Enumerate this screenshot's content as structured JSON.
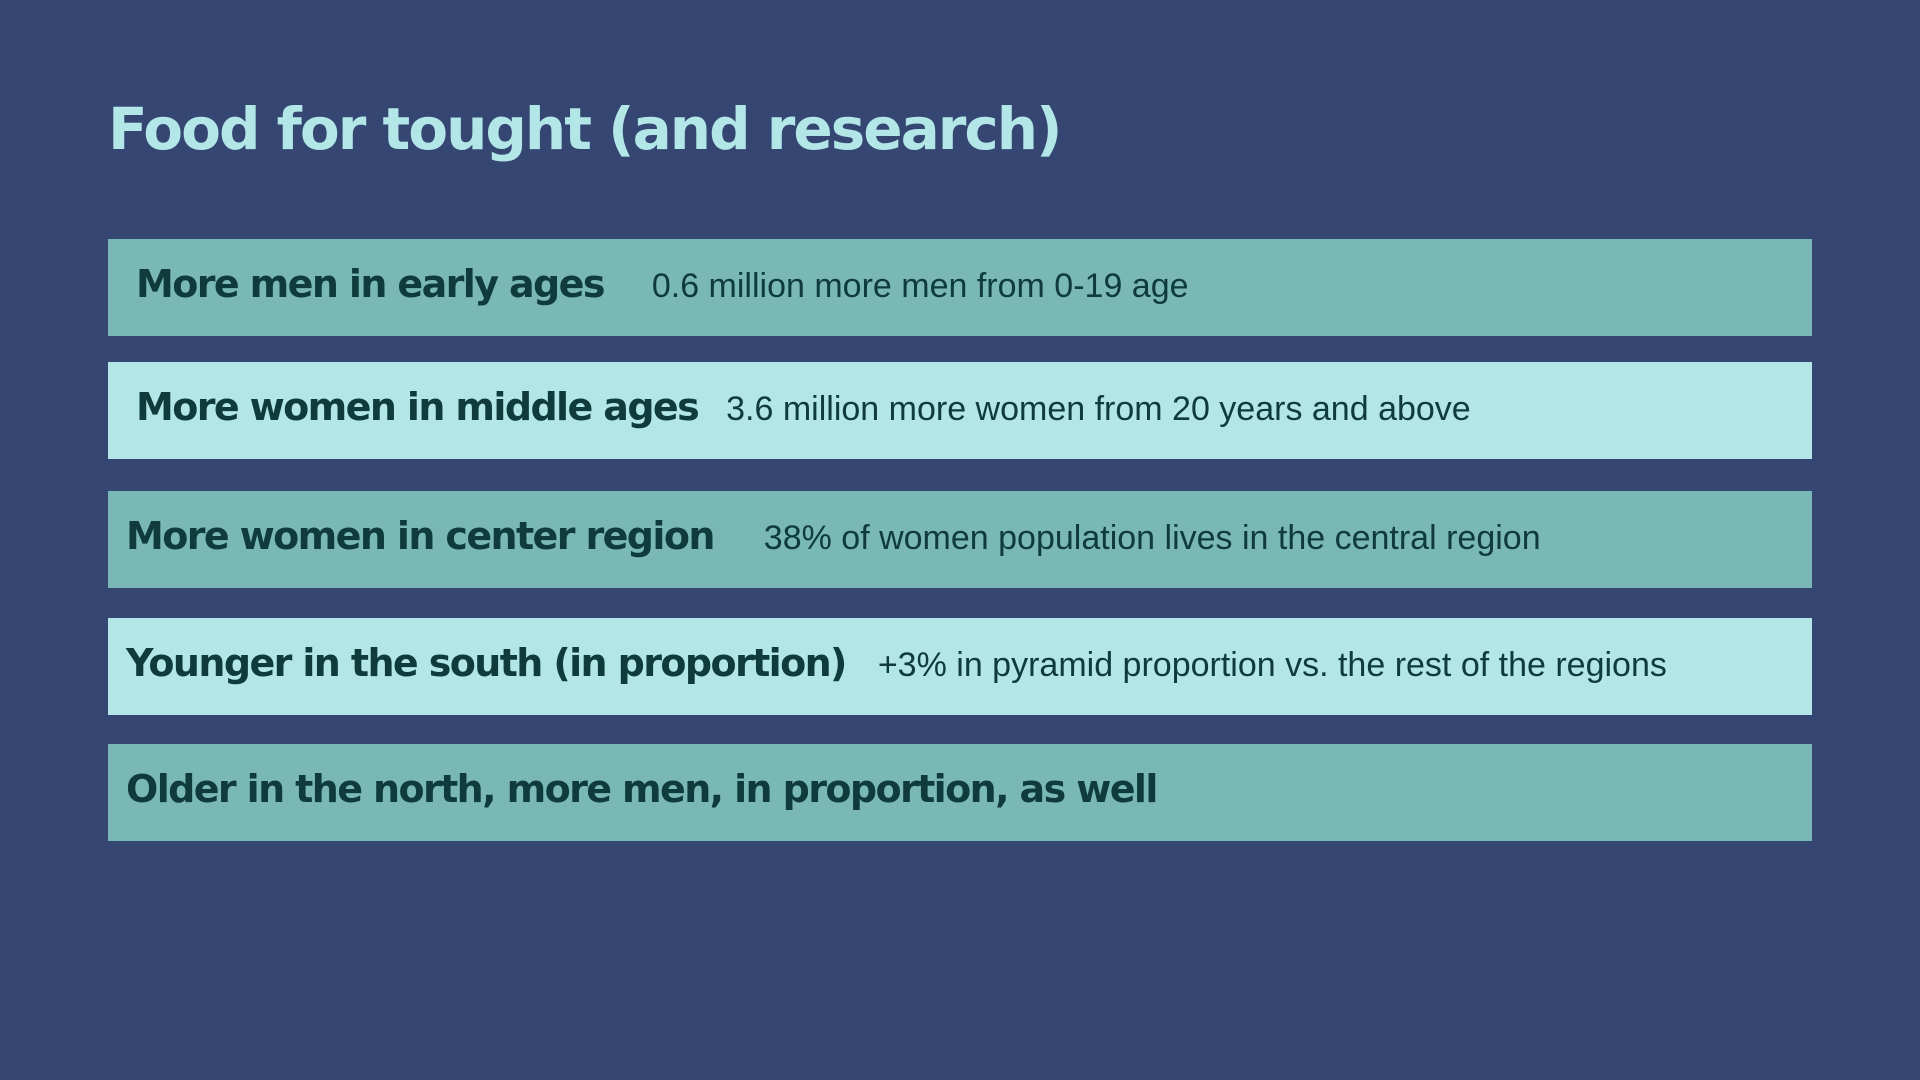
{
  "slide": {
    "title": "Food for tought (and research)",
    "colors": {
      "background": "#354672",
      "title": "#b2e6e7",
      "row_dark": "#7ab8b8",
      "row_light": "#b2e6e7",
      "row_text": "#0f3b3c"
    },
    "rows": [
      {
        "heading": "More men in early ages",
        "detail": "0.6 million more men from 0-19 age"
      },
      {
        "heading": "More women in middle ages",
        "detail": "3.6 million more women from 20 years and above"
      },
      {
        "heading": "More women in center region",
        "detail": "38% of women population lives in the central region"
      },
      {
        "heading": "Younger in the south (in proportion)",
        "detail": "+3% in pyramid proportion vs. the rest of the regions"
      },
      {
        "heading": "Older in the north, more men, in proportion, as well",
        "detail": ""
      }
    ]
  }
}
